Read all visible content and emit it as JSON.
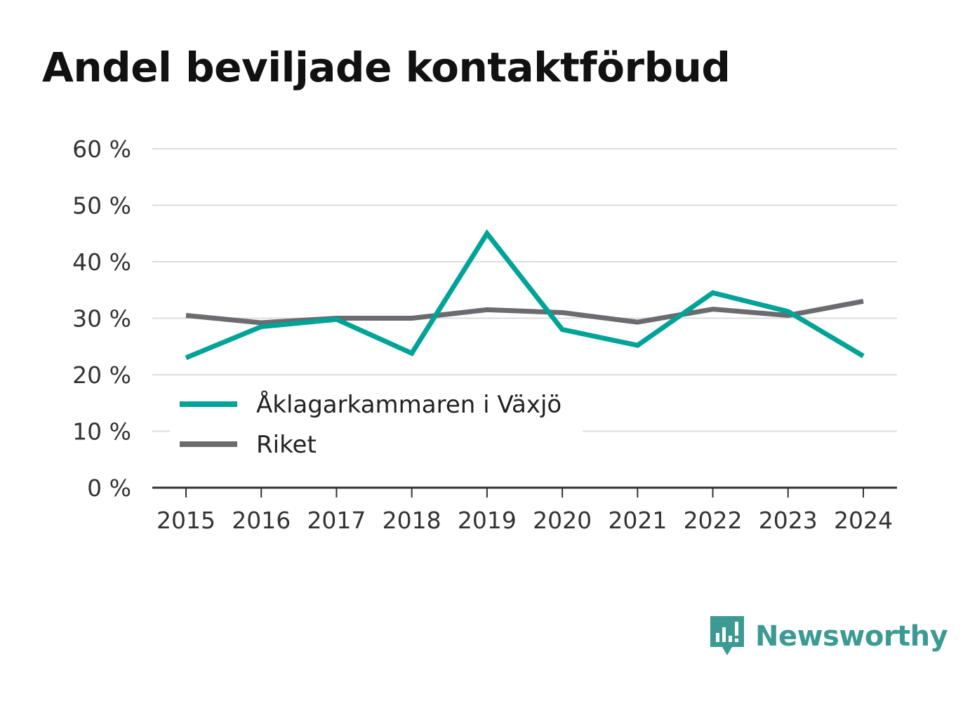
{
  "title": "Andel beviljade kontaktförbud",
  "brand": {
    "name": "Newsworthy",
    "icon": "newsworthy-logo-icon",
    "color": "#3b9a94"
  },
  "chart_data": {
    "type": "line",
    "title": "Andel beviljade kontaktförbud",
    "xlabel": "",
    "ylabel": "",
    "x": [
      "2015",
      "2016",
      "2017",
      "2018",
      "2019",
      "2020",
      "2021",
      "2022",
      "2023",
      "2024"
    ],
    "ylim": [
      0,
      60
    ],
    "yticks": [
      0,
      10,
      20,
      30,
      40,
      50,
      60
    ],
    "ytick_labels": [
      "0 %",
      "10 %",
      "20 %",
      "30 %",
      "40 %",
      "50 %",
      "60 %"
    ],
    "grid": true,
    "legend_position": "bottom-left",
    "series": [
      {
        "name": "Åklagarkammaren i Växjö",
        "color": "#00a398",
        "values": [
          23,
          28.5,
          29.8,
          23.8,
          45,
          28,
          25.2,
          34.5,
          31.2,
          23.3
        ]
      },
      {
        "name": "Riket",
        "color": "#6b6b70",
        "values": [
          30.5,
          29.2,
          30,
          30,
          31.5,
          31,
          29.3,
          31.6,
          30.5,
          33
        ]
      }
    ]
  }
}
